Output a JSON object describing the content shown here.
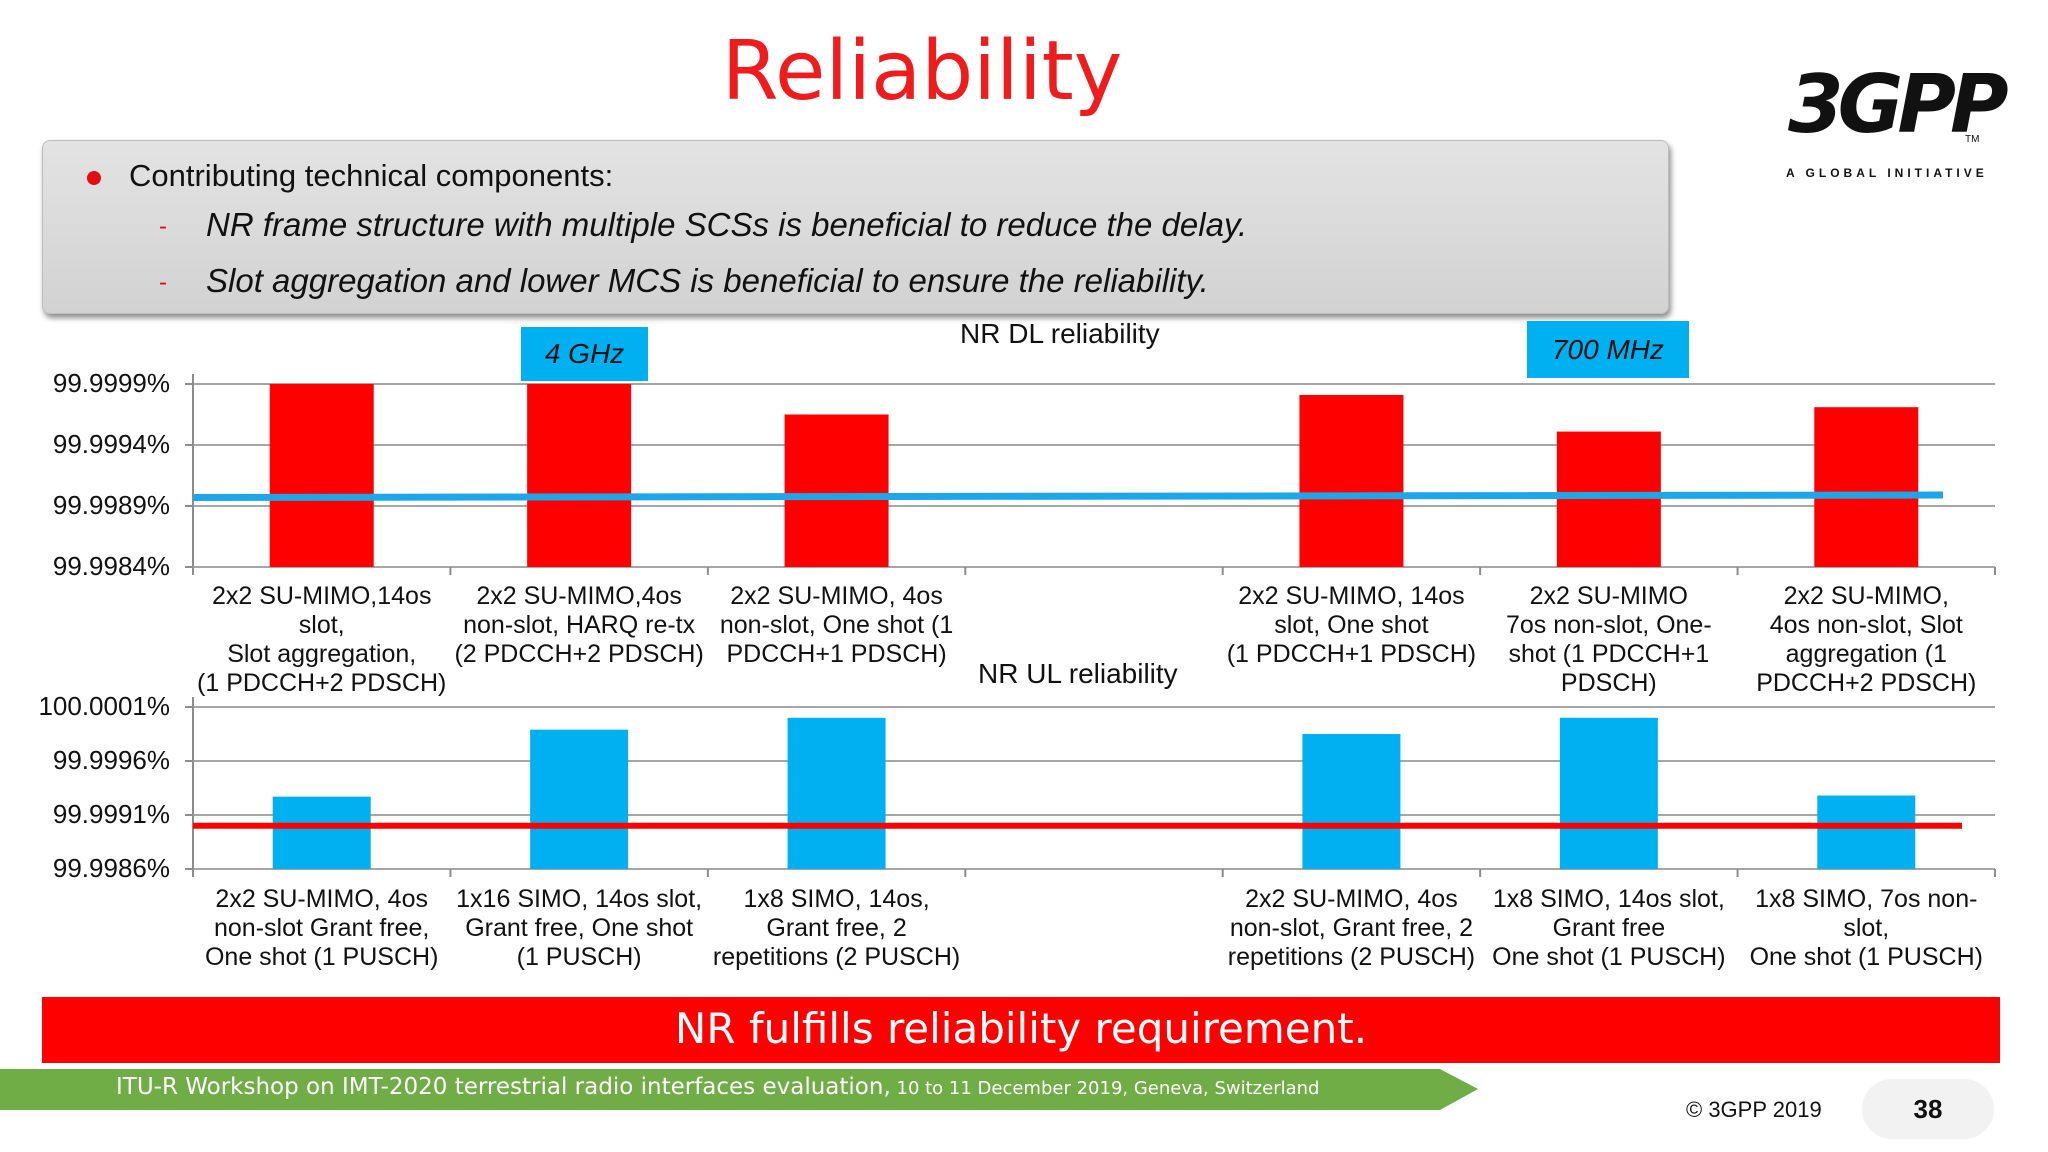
{
  "slide": {
    "title": "Reliability",
    "logo": {
      "main": "3GPP",
      "tm": "TM",
      "subtitle": "A GLOBAL INITIATIVE"
    },
    "bullets": {
      "heading": "Contributing technical components:",
      "items": [
        "NR frame structure with multiple SCSs is beneficial to reduce the delay.",
        "Slot aggregation and lower MCS is beneficial to ensure the reliability."
      ]
    },
    "banner": "NR fulfills reliability requirement.",
    "footer": {
      "main": "ITU-R Workshop on IMT-2020 terrestrial radio interfaces evaluation,",
      "small": " 10 to 11 December 2019, Geneva, Switzerland",
      "copyright": "© 3GPP 2019",
      "page": "38"
    },
    "colors": {
      "title": "#ee1c1c",
      "dl_bars": "#ff0000",
      "ul_bars": "#00b0f0",
      "dl_threshold": "#1ea7e8",
      "ul_threshold": "#ff0000",
      "badge": "#00b0f0",
      "footer_green": "#70ad47"
    }
  },
  "chart_data": [
    {
      "type": "bar",
      "title": "NR DL reliability",
      "band_labels": [
        "4 GHz",
        "700 MHz"
      ],
      "categories": [
        "2x2 SU-MIMO,14os\nslot,\nSlot aggregation,\n(1 PDCCH+2 PDSCH)",
        "2x2 SU-MIMO,4os\nnon-slot, HARQ re-tx\n(2 PDCCH+2 PDSCH)",
        "2x2 SU-MIMO, 4os\nnon-slot, One shot (1\nPDCCH+1 PDSCH)",
        "",
        "2x2 SU-MIMO, 14os\nslot, One shot\n(1 PDCCH+1 PDSCH)",
        "2x2 SU-MIMO\n7os non-slot, One-\nshot (1 PDCCH+1\nPDSCH)",
        "2x2 SU-MIMO,\n4os non-slot, Slot\naggregation (1\nPDCCH+2 PDSCH)"
      ],
      "values": [
        99.9999,
        99.9999,
        99.99965,
        null,
        99.99981,
        99.99951,
        99.99971
      ],
      "threshold": [
        99.99897,
        99.99899
      ],
      "ylim": [
        99.9984,
        99.9999
      ],
      "yticks": [
        99.9999,
        99.9994,
        99.9989,
        99.9984
      ],
      "ytick_labels": [
        "99.9999%",
        "99.9994%",
        "99.9989%",
        "99.9984%"
      ],
      "grid": true
    },
    {
      "type": "bar",
      "title": "NR UL reliability",
      "categories": [
        "2x2 SU-MIMO, 4os\nnon-slot Grant free,\nOne shot (1 PUSCH)",
        "1x16 SIMO, 14os slot,\nGrant free, One shot\n(1 PUSCH)",
        "1x8 SIMO, 14os,\nGrant free, 2\nrepetitions (2 PUSCH)",
        "",
        "2x2 SU-MIMO, 4os\nnon-slot, Grant free, 2\nrepetitions (2 PUSCH)",
        "1x8 SIMO, 14os slot,\nGrant free\nOne shot (1 PUSCH)",
        "1x8 SIMO, 7os non-\nslot,\nOne shot (1 PUSCH)"
      ],
      "values": [
        99.99927,
        99.99989,
        100.0,
        null,
        99.99985,
        100.0,
        99.99928
      ],
      "threshold": [
        99.999,
        99.999
      ],
      "ylim": [
        99.9986,
        100.0001
      ],
      "yticks": [
        100.0001,
        99.9996,
        99.9991,
        99.9986
      ],
      "ytick_labels": [
        "100.0001%",
        "99.9996%",
        "99.9991%",
        "99.9986%"
      ],
      "grid": true
    }
  ]
}
